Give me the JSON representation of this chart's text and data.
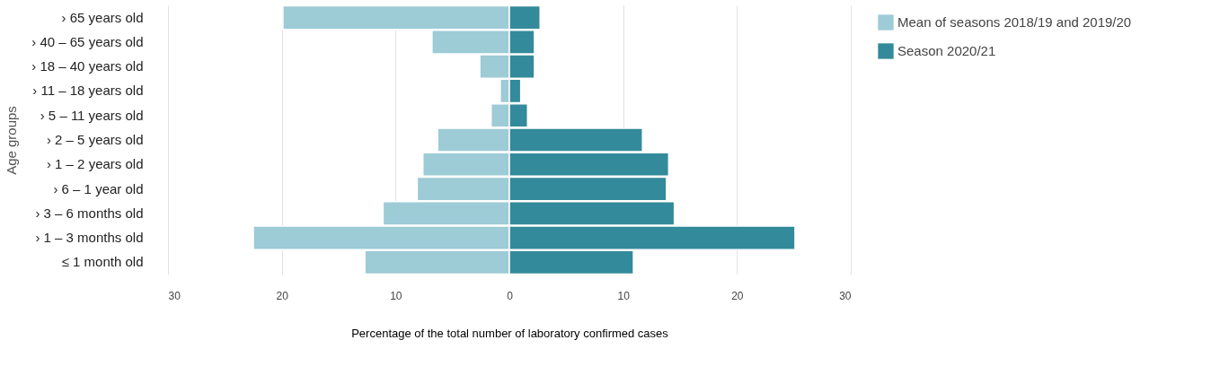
{
  "chart_data": {
    "type": "bar",
    "orientation": "horizontal",
    "xlabel": "Percentage of the total number of laboratory confirmed cases",
    "ylabel": "Age groups",
    "categories": [
      "› 65 years old",
      "› 40 – 65 years old",
      "› 18 – 40 years old",
      "› 11 – 18 years old",
      "› 5 – 11 years old",
      "› 2 – 5 years old",
      "› 1 – 2 years old",
      "› 6 – 1 year old",
      "› 3 – 6 months old",
      "› 1 – 3 months old",
      "≤ 1 month old"
    ],
    "series": [
      {
        "name": "Mean of seasons 2018/19 and 2019/20",
        "color": "#9dcbd6",
        "values": [
          -19.9,
          -6.8,
          -2.6,
          -0.8,
          -1.6,
          -6.3,
          -7.6,
          -8.1,
          -11.1,
          -22.5,
          -12.7
        ]
      },
      {
        "name": "Season 2020/21",
        "color": "#338a9a",
        "values": [
          2.7,
          2.2,
          2.2,
          1.0,
          1.6,
          11.7,
          14.0,
          13.8,
          14.5,
          25.1,
          10.9
        ]
      }
    ],
    "xlim": [
      -30,
      30
    ],
    "xticks": [
      {
        "value": -30,
        "label": "30"
      },
      {
        "value": -20,
        "label": "20"
      },
      {
        "value": -10,
        "label": "10"
      },
      0,
      10,
      20,
      30
    ],
    "grid": "x",
    "legend": "top right",
    "stacked": true
  }
}
